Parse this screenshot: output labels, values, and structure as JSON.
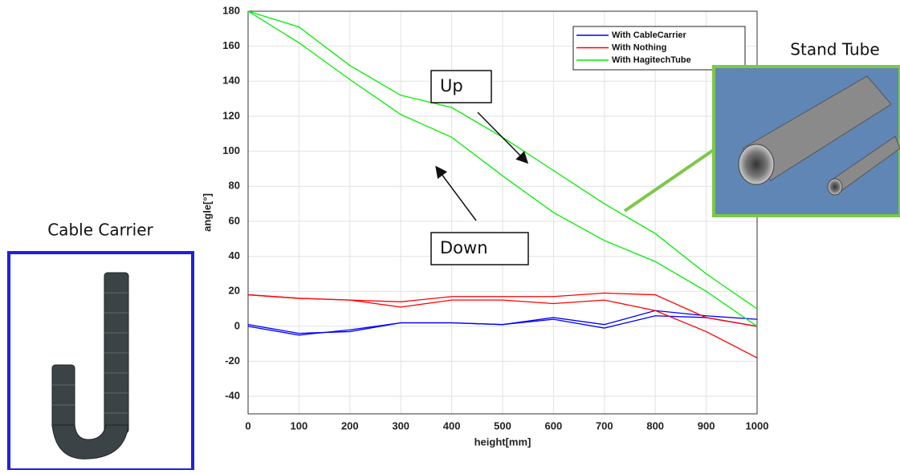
{
  "chart_data": {
    "type": "line",
    "x_label": "height[mm]",
    "y_label": "angle[°]",
    "x": [
      0,
      100,
      200,
      300,
      400,
      500,
      600,
      700,
      800,
      900,
      1000
    ],
    "series": [
      {
        "name": "With CableCarrier",
        "color": "#0000ff",
        "values": [
          0,
          -5,
          -2,
          2,
          2,
          1,
          5,
          1,
          9,
          6,
          4
        ],
        "values_2": [
          1,
          -4,
          -3,
          2,
          2,
          1,
          4,
          -1,
          6,
          5,
          0
        ]
      },
      {
        "name": "With Nothing",
        "color": "#ff0000",
        "values": [
          18,
          16,
          15,
          14,
          17,
          17,
          17,
          19,
          18,
          5,
          0
        ],
        "values_2": [
          18,
          16,
          15,
          11,
          15,
          15,
          13,
          15,
          9,
          -3,
          -18
        ]
      },
      {
        "name": "With HagitechTube",
        "color": "#00ee00",
        "values": [
          180,
          171,
          149,
          132,
          125,
          108,
          89,
          70,
          53,
          30,
          10
        ],
        "values_2": [
          180,
          162,
          141,
          121,
          108,
          86,
          65,
          49,
          37,
          20,
          0
        ]
      }
    ],
    "xlim": [
      0,
      1000
    ],
    "ylim": [
      -50,
      180
    ],
    "xticks": [
      0,
      100,
      200,
      300,
      400,
      500,
      600,
      700,
      800,
      900,
      1000
    ],
    "yticks": [
      -40,
      -20,
      0,
      20,
      40,
      60,
      80,
      100,
      120,
      140,
      160,
      180
    ],
    "grid": true,
    "annotations": [
      "Up",
      "Down",
      "Cable Carrier",
      "Stand Tube"
    ]
  }
}
